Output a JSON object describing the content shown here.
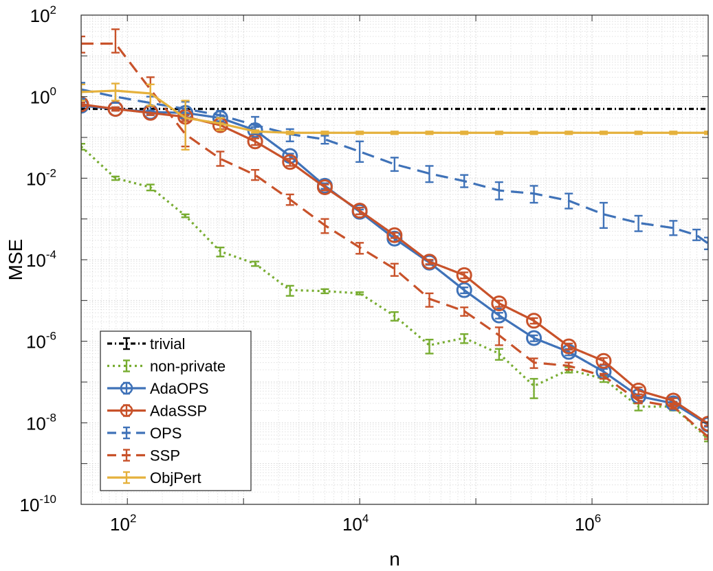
{
  "chart_data": {
    "type": "line",
    "title": "",
    "xlabel": "n",
    "ylabel": "MSE",
    "xscale": "log",
    "yscale": "log",
    "xlim": [
      40,
      10000000
    ],
    "ylim": [
      1e-10,
      100
    ],
    "grid": true,
    "minor_grid": true,
    "legend_position": "bottom-left",
    "x_ticks": [
      {
        "base": "10",
        "exp": "2",
        "value": 100
      },
      {
        "base": "10",
        "exp": "4",
        "value": 10000
      },
      {
        "base": "10",
        "exp": "6",
        "value": 1000000
      }
    ],
    "y_ticks": [
      {
        "base": "10",
        "exp": "2",
        "value": 100
      },
      {
        "base": "10",
        "exp": "0",
        "value": 1
      },
      {
        "base": "10",
        "exp": "-2",
        "value": 0.01
      },
      {
        "base": "10",
        "exp": "-4",
        "value": 0.0001
      },
      {
        "base": "10",
        "exp": "-6",
        "value": 1e-06
      },
      {
        "base": "10",
        "exp": "-8",
        "value": 1e-08
      },
      {
        "base": "10",
        "exp": "-10",
        "value": 1e-10
      }
    ],
    "x": [
      40,
      79,
      158,
      316,
      631,
      1259,
      2512,
      5012,
      10000,
      19953,
      39811,
      79433,
      158489,
      316228,
      630957,
      1258925,
      2511886,
      5011872,
      10000000
    ],
    "series": [
      {
        "name": "trivial",
        "color": "#000000",
        "dash": "dashdot",
        "marker": "none",
        "x": [
          40,
          10000000
        ],
        "values": [
          0.5,
          0.5
        ],
        "err_lo": [
          0,
          0
        ],
        "err_hi": [
          0,
          0
        ]
      },
      {
        "name": "non-private",
        "color": "#77AC30",
        "dash": "dotted",
        "marker": "none",
        "values": [
          0.06,
          0.01,
          0.006,
          0.0012,
          0.00016,
          8e-05,
          1.8e-05,
          1.7e-05,
          1.5e-05,
          4.2e-06,
          8e-07,
          1.2e-06,
          5e-07,
          8e-08,
          2e-07,
          1.2e-07,
          2.5e-08,
          2.5e-08,
          4e-09
        ],
        "err_lo": [
          0.05,
          0.009,
          0.005,
          0.0011,
          0.00012,
          7e-05,
          1.3e-05,
          1.5e-05,
          1.4e-05,
          3.2e-06,
          5e-07,
          9e-07,
          3.5e-07,
          4e-08,
          1.7e-07,
          1e-07,
          2e-08,
          2e-08,
          3.5e-09
        ],
        "err_hi": [
          0.07,
          0.011,
          0.007,
          0.0013,
          0.0002,
          9e-05,
          2.3e-05,
          1.9e-05,
          1.6e-05,
          5.2e-06,
          1.1e-06,
          1.5e-06,
          6.5e-07,
          1.2e-07,
          2.3e-07,
          1.4e-07,
          3e-08,
          3e-08,
          4.5e-09
        ]
      },
      {
        "name": "AdaOPS",
        "color": "#3F72B8",
        "dash": "solid",
        "marker": "circle",
        "values": [
          0.6,
          0.5,
          0.42,
          0.4,
          0.3,
          0.15,
          0.035,
          0.0065,
          0.0015,
          0.00033,
          8.5e-05,
          1.8e-05,
          4.3e-06,
          1.2e-06,
          5.5e-07,
          1.8e-07,
          4.5e-08,
          3e-08,
          9e-09
        ],
        "err_lo": [
          0.55,
          0.45,
          0.38,
          0.35,
          0.25,
          0.12,
          0.03,
          0.0055,
          0.0013,
          0.00028,
          7.5e-05,
          1.5e-05,
          3.6e-06,
          1e-06,
          4.5e-07,
          1.5e-07,
          4e-08,
          2.7e-08,
          8e-09
        ],
        "err_hi": [
          0.65,
          0.55,
          0.46,
          0.45,
          0.35,
          0.18,
          0.04,
          0.0075,
          0.0017,
          0.00038,
          9.5e-05,
          2.1e-05,
          5e-06,
          1.4e-06,
          6.5e-07,
          2.1e-07,
          5e-08,
          3.3e-08,
          1e-08
        ]
      },
      {
        "name": "AdaSSP",
        "color": "#C8522A",
        "dash": "solid",
        "marker": "circle",
        "values": [
          0.65,
          0.5,
          0.4,
          0.32,
          0.2,
          0.08,
          0.025,
          0.006,
          0.0016,
          0.0004,
          9e-05,
          4.2e-05,
          8.5e-06,
          3.2e-06,
          7.5e-07,
          3.3e-07,
          6.2e-08,
          3.5e-08,
          9.5e-09
        ],
        "err_lo": [
          0.58,
          0.45,
          0.35,
          0.28,
          0.16,
          0.065,
          0.02,
          0.005,
          0.0013,
          0.00034,
          7.8e-05,
          3.5e-05,
          7e-06,
          2.7e-06,
          6.2e-07,
          2.7e-07,
          5e-08,
          3e-08,
          8.5e-09
        ],
        "err_hi": [
          0.72,
          0.55,
          0.45,
          0.36,
          0.24,
          0.095,
          0.03,
          0.007,
          0.0019,
          0.00046,
          0.0001,
          4.9e-05,
          1e-05,
          3.7e-06,
          8.8e-07,
          3.9e-07,
          7.4e-08,
          4e-08,
          1.05e-08
        ]
      },
      {
        "name": "OPS",
        "color": "#3F72B8",
        "dash": "dashed",
        "marker": "none",
        "values": [
          1.5,
          1.0,
          0.7,
          0.5,
          0.35,
          0.2,
          0.12,
          0.09,
          0.045,
          0.022,
          0.013,
          0.0085,
          0.005,
          0.0042,
          0.0028,
          0.0013,
          0.0008,
          0.0006,
          0.0004,
          0.00025
        ],
        "x": [
          40,
          79,
          158,
          316,
          631,
          1259,
          2512,
          5012,
          10000,
          19953,
          39811,
          79433,
          158489,
          316228,
          630957,
          1258925,
          2511886,
          5011872,
          7943282,
          10000000
        ],
        "err_lo": [
          0.9,
          0.7,
          0.45,
          0.3,
          0.25,
          0.12,
          0.08,
          0.07,
          0.025,
          0.015,
          0.008,
          0.006,
          0.003,
          0.0025,
          0.0018,
          0.0006,
          0.0005,
          0.0004,
          0.0003,
          0.00018
        ],
        "err_hi": [
          2.2,
          1.4,
          1.0,
          0.75,
          0.45,
          0.32,
          0.16,
          0.11,
          0.08,
          0.032,
          0.02,
          0.012,
          0.008,
          0.0065,
          0.0042,
          0.0025,
          0.0012,
          0.0009,
          0.00055,
          0.00035
        ]
      },
      {
        "name": "SSP",
        "color": "#C8522A",
        "dash": "dashed",
        "marker": "none",
        "values": [
          20,
          20,
          1.5,
          0.12,
          0.03,
          0.012,
          0.003,
          0.0007,
          0.0002,
          6e-05,
          1.1e-05,
          5.5e-06,
          1.4e-06,
          3e-07,
          2.5e-07,
          1.4e-07,
          3.5e-08,
          2.5e-08,
          4.5e-09
        ],
        "err_lo": [
          12,
          12,
          0.6,
          0.06,
          0.02,
          0.009,
          0.0022,
          0.00045,
          0.00014,
          4e-05,
          7e-06,
          4.2e-06,
          8e-07,
          2.2e-07,
          2e-07,
          1.2e-07,
          3e-08,
          2.2e-08,
          4e-09
        ],
        "err_hi": [
          30,
          45,
          3.0,
          0.25,
          0.045,
          0.016,
          0.004,
          0.001,
          0.00026,
          8e-05,
          1.5e-05,
          6.8e-06,
          2.2e-06,
          3.8e-07,
          3e-07,
          1.6e-07,
          4e-08,
          2.8e-08,
          5e-09
        ]
      },
      {
        "name": "ObjPert",
        "color": "#E5B13C",
        "dash": "solid",
        "marker": "none",
        "values": [
          1.3,
          1.4,
          1.2,
          0.3,
          0.22,
          0.14,
          0.13,
          0.13,
          0.13,
          0.13,
          0.13,
          0.13,
          0.13,
          0.13,
          0.13,
          0.13,
          0.13,
          0.13,
          0.13
        ],
        "err_lo": [
          0.8,
          0.8,
          0.6,
          0.05,
          0.15,
          0.13,
          0.12,
          0.12,
          0.12,
          0.12,
          0.12,
          0.12,
          0.12,
          0.12,
          0.12,
          0.12,
          0.12,
          0.12,
          0.12
        ],
        "err_hi": [
          2.0,
          2.1,
          2.0,
          0.8,
          0.3,
          0.15,
          0.14,
          0.14,
          0.14,
          0.14,
          0.14,
          0.14,
          0.14,
          0.14,
          0.14,
          0.14,
          0.14,
          0.14,
          0.14
        ]
      }
    ]
  }
}
